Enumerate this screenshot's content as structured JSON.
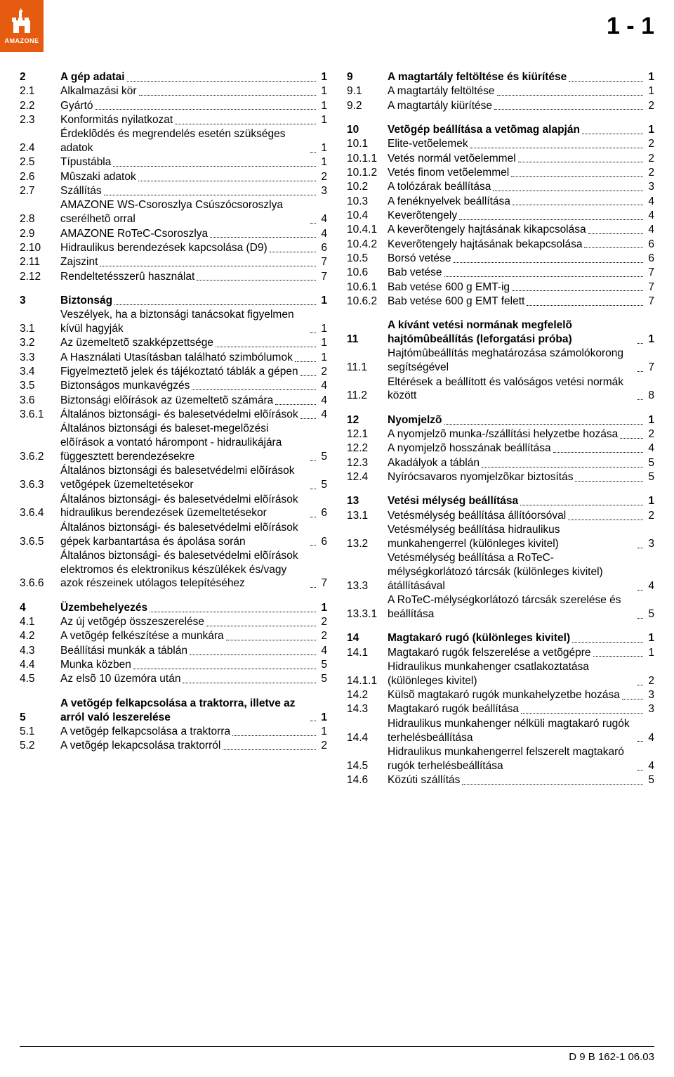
{
  "page_number_top": "1 - 1",
  "footer": "D 9  B 162-1  06.03",
  "logo": {
    "brand": "AMAZONE",
    "bg_color": "#e55b0f",
    "fg_color": "#ffffff"
  },
  "left": [
    {
      "kind": "head",
      "num": "2",
      "title": "A gép adatai",
      "page": "1"
    },
    {
      "kind": "item",
      "num": "2.1",
      "title": "Alkalmazási kör",
      "page": "1"
    },
    {
      "kind": "item",
      "num": "2.2",
      "title": "Gyártó",
      "page": "1"
    },
    {
      "kind": "item",
      "num": "2.3",
      "title": "Konformitás nyilatkozat",
      "page": "1"
    },
    {
      "kind": "item",
      "num": "2.4",
      "title": "Érdeklõdés és megrendelés esetén szükséges adatok",
      "page": "1"
    },
    {
      "kind": "item",
      "num": "2.5",
      "title": "Típustábla",
      "page": "1"
    },
    {
      "kind": "item",
      "num": "2.6",
      "title": "Mûszaki adatok",
      "page": "2"
    },
    {
      "kind": "item",
      "num": "2.7",
      "title": "Szállítás",
      "page": "3"
    },
    {
      "kind": "item",
      "num": "2.8",
      "title": "AMAZONE WS-Csoroszlya Csúszócsoroszlya cserélhetõ orral",
      "page": "4"
    },
    {
      "kind": "item",
      "num": "2.9",
      "title": "AMAZONE RoTeC-Csoroszlya",
      "page": "4"
    },
    {
      "kind": "item",
      "num": "2.10",
      "title": "Hidraulikus berendezések kapcsolása (D9)",
      "page": "6"
    },
    {
      "kind": "item",
      "num": "2.11",
      "title": "Zajszint",
      "page": "7"
    },
    {
      "kind": "item",
      "num": "2.12",
      "title": "Rendeltetésszerû használat",
      "page": "7"
    },
    {
      "kind": "gap"
    },
    {
      "kind": "head",
      "num": "3",
      "title": "Biztonság",
      "page": "1"
    },
    {
      "kind": "item",
      "num": "3.1",
      "title": "Veszélyek, ha a biztonsági tanácsokat figyelmen kívül hagyják",
      "page": "1"
    },
    {
      "kind": "item",
      "num": "3.2",
      "title": "Az üzemeltetõ szakképzettsége",
      "page": "1"
    },
    {
      "kind": "item",
      "num": "3.3",
      "title": "A Használati Utasításban található szimbólumok",
      "page": "1"
    },
    {
      "kind": "item",
      "num": "3.4",
      "title": "Figyelmeztetõ jelek és tájékoztató táblák a gépen",
      "page": "2"
    },
    {
      "kind": "item",
      "num": "3.5",
      "title": "Biztonságos munkavégzés",
      "page": "4"
    },
    {
      "kind": "item",
      "num": "3.6",
      "title": "Biztonsági elõírások az üzemeltetõ számára",
      "page": "4"
    },
    {
      "kind": "item",
      "num": "3.6.1",
      "title": "Általános biztonsági- és balesetvédelmi elõírások",
      "page": "4"
    },
    {
      "kind": "item",
      "num": "3.6.2",
      "title": "Általános biztonsági és baleset-megelõzési elõírások a vontató hárompont - hidraulikájára függesztett berendezésekre",
      "page": "5"
    },
    {
      "kind": "item",
      "num": "3.6.3",
      "title": "Általános biztonsági és balesetvédelmi elõírások vetõgépek üzemeltetésekor",
      "page": "5"
    },
    {
      "kind": "item",
      "num": "3.6.4",
      "title": "Általános biztonsági- és balesetvédelmi elõírások hidraulikus berendezések üzemeltetésekor",
      "page": "6"
    },
    {
      "kind": "item",
      "num": "3.6.5",
      "title": "Általános biztonsági- és balesetvédelmi elõírások gépek karbantartása és ápolása során",
      "page": "6"
    },
    {
      "kind": "item",
      "num": "3.6.6",
      "title": "Általános biztonsági- és balesetvédelmi elõírások elektromos és elektronikus készülékek és/vagy azok részeinek utólagos telepítéséhez",
      "page": "7"
    },
    {
      "kind": "gap"
    },
    {
      "kind": "head",
      "num": "4",
      "title": "Üzembehelyezés",
      "page": "1"
    },
    {
      "kind": "item",
      "num": "4.1",
      "title": "Az új vetõgép összeszerelése",
      "page": "2"
    },
    {
      "kind": "item",
      "num": "4.2",
      "title": "A vetõgép felkészítése a munkára",
      "page": "2"
    },
    {
      "kind": "item",
      "num": "4.3",
      "title": "Beállítási munkák a táblán",
      "page": "4"
    },
    {
      "kind": "item",
      "num": "4.4",
      "title": "Munka közben",
      "page": "5"
    },
    {
      "kind": "item",
      "num": "4.5",
      "title": "Az elsõ 10 üzemóra után",
      "page": "5"
    },
    {
      "kind": "gap"
    },
    {
      "kind": "head",
      "num": "5",
      "title": "A vetõgép felkapcsolása a traktorra, illetve az arról való leszerelése",
      "page": "1"
    },
    {
      "kind": "item",
      "num": "5.1",
      "title": "A vetõgép felkapcsolása a traktorra",
      "page": "1"
    },
    {
      "kind": "item",
      "num": "5.2",
      "title": "A vetõgép lekapcsolása traktorról",
      "page": "2"
    }
  ],
  "right": [
    {
      "kind": "head",
      "num": "9",
      "title": "A magtartály feltöltése és kiürítése",
      "page": "1"
    },
    {
      "kind": "item",
      "num": "9.1",
      "title": "A magtartály feltöltése",
      "page": "1"
    },
    {
      "kind": "item",
      "num": "9.2",
      "title": "A magtartály kiürítése",
      "page": "2"
    },
    {
      "kind": "gap"
    },
    {
      "kind": "head",
      "num": "10",
      "title": "Vetõgép beállítása a vetõmag alapján",
      "page": "1"
    },
    {
      "kind": "item",
      "num": "10.1",
      "title": "Elite-vetõelemek",
      "page": "2"
    },
    {
      "kind": "item",
      "num": "10.1.1",
      "title": "Vetés normál vetõelemmel",
      "page": "2"
    },
    {
      "kind": "item",
      "num": "10.1.2",
      "title": "Vetés finom vetõelemmel",
      "page": "2"
    },
    {
      "kind": "item",
      "num": "10.2",
      "title": "A tolózárak beállítása",
      "page": "3"
    },
    {
      "kind": "item",
      "num": "10.3",
      "title": "A fenéknyelvek beállítása",
      "page": "4"
    },
    {
      "kind": "item",
      "num": "10.4",
      "title": "Keverõtengely",
      "page": "4"
    },
    {
      "kind": "item",
      "num": "10.4.1",
      "title": "A keverõtengely hajtásának kikapcsolása",
      "page": "4"
    },
    {
      "kind": "item",
      "num": "10.4.2",
      "title": "Keverõtengely hajtásának bekapcsolása",
      "page": "6"
    },
    {
      "kind": "item",
      "num": "10.5",
      "title": "Borsó vetése",
      "page": "6"
    },
    {
      "kind": "item",
      "num": "10.6",
      "title": "Bab vetése",
      "page": "7"
    },
    {
      "kind": "item",
      "num": "10.6.1",
      "title": "Bab vetése 600 g EMT-ig",
      "page": "7"
    },
    {
      "kind": "item",
      "num": "10.6.2",
      "title": "Bab vetése 600 g EMT felett",
      "page": "7"
    },
    {
      "kind": "gap"
    },
    {
      "kind": "head",
      "num": "11",
      "title": "A kívánt vetési normának megfelelõ hajtómûbeállítás (leforgatási próba)",
      "page": "1"
    },
    {
      "kind": "item",
      "num": "11.1",
      "title": "Hajtómûbeállítás meghatározása számolókorong segítségével",
      "page": "7"
    },
    {
      "kind": "item",
      "num": "11.2",
      "title": "Eltérések a beállított és valóságos vetési normák között",
      "page": "8"
    },
    {
      "kind": "gap"
    },
    {
      "kind": "head",
      "num": "12",
      "title": "Nyomjelzõ",
      "page": "1"
    },
    {
      "kind": "item",
      "num": "12.1",
      "title": "A nyomjelzõ munka-/szállítási helyzetbe hozása",
      "page": "2"
    },
    {
      "kind": "item",
      "num": "12.2",
      "title": "A nyomjelzõ hosszának beállítása",
      "page": "4"
    },
    {
      "kind": "item",
      "num": "12.3",
      "title": "Akadályok a táblán",
      "page": "5"
    },
    {
      "kind": "item",
      "num": "12.4",
      "title": "Nyírócsavaros nyomjelzõkar biztosítás",
      "page": "5"
    },
    {
      "kind": "gap"
    },
    {
      "kind": "head",
      "num": "13",
      "title": "Vetési mélység beállítása",
      "page": "1"
    },
    {
      "kind": "item",
      "num": "13.1",
      "title": "Vetésmélység beállítása állítóorsóval",
      "page": "2"
    },
    {
      "kind": "item",
      "num": "13.2",
      "title": "Vetésmélység beállítása hidraulikus munkahengerrel (különleges kivitel)",
      "page": "3"
    },
    {
      "kind": "item",
      "num": "13.3",
      "title": "Vetésmélység beállítása a RoTeC-mélységkorlátozó tárcsák (különleges kivitel) átállításával",
      "page": "4"
    },
    {
      "kind": "item",
      "num": "13.3.1",
      "title": "A RoTeC-mélységkorlátozó tárcsák szerelése és beállítása",
      "page": "5"
    },
    {
      "kind": "gap"
    },
    {
      "kind": "head",
      "num": "14",
      "title": "Magtakaró rugó (különleges kivitel)",
      "page": "1"
    },
    {
      "kind": "item",
      "num": "14.1",
      "title": "Magtakaró rugók felszerelése a vetõgépre",
      "page": "1"
    },
    {
      "kind": "item",
      "num": "14.1.1",
      "title": "Hidraulikus munkahenger csatlakoztatása (különleges kivitel)",
      "page": "2"
    },
    {
      "kind": "item",
      "num": "14.2",
      "title": "Külsõ magtakaró rugók munkahelyzetbe hozása",
      "page": "3"
    },
    {
      "kind": "item",
      "num": "14.3",
      "title": "Magtakaró rugók beállítása",
      "page": "3"
    },
    {
      "kind": "item",
      "num": "14.4",
      "title": "Hidraulikus munkahenger nélküli magtakaró rugók terhelésbeállítása",
      "page": "4"
    },
    {
      "kind": "item",
      "num": "14.5",
      "title": "Hidraulikus munkahengerrel felszerelt magtakaró rugók terhelésbeállítása",
      "page": "4"
    },
    {
      "kind": "item",
      "num": "14.6",
      "title": "Közúti szállítás",
      "page": "5"
    }
  ]
}
